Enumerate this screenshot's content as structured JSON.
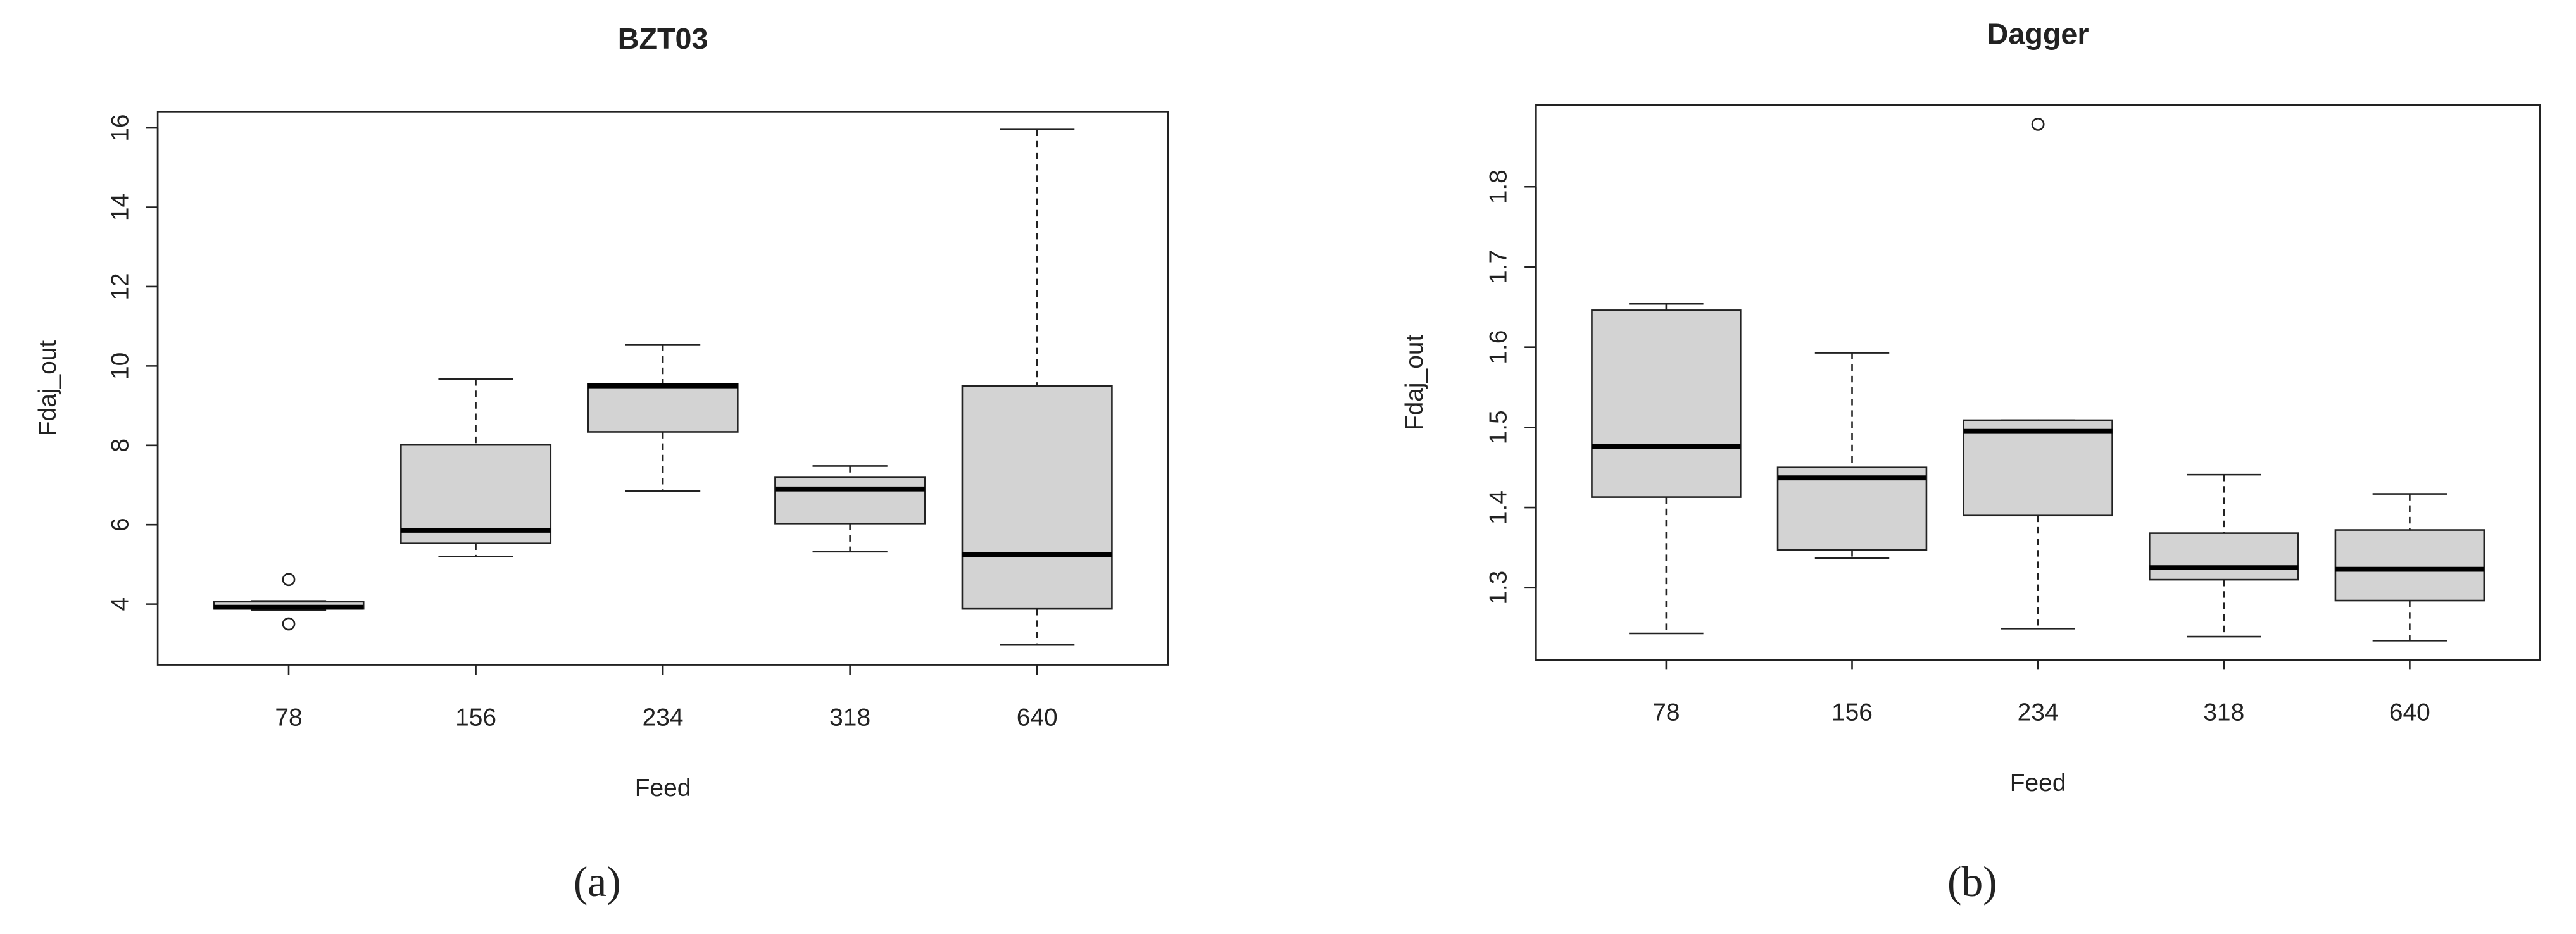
{
  "chart_data": [
    {
      "type": "box",
      "title": "BZT03",
      "xlabel": "Feed",
      "ylabel": "Fdaj_out",
      "caption": "(a)",
      "categories": [
        "78",
        "156",
        "234",
        "318",
        "640"
      ],
      "min": [
        3.85,
        5.2,
        6.85,
        5.32,
        2.97
      ],
      "q1": [
        3.88,
        5.53,
        8.34,
        6.03,
        3.88
      ],
      "median": [
        3.92,
        5.86,
        9.5,
        6.9,
        5.24
      ],
      "q3": [
        4.06,
        8.01,
        9.54,
        7.19,
        9.5
      ],
      "max": [
        4.08,
        9.67,
        10.54,
        7.48,
        15.96
      ],
      "outliers": [
        [
          4.62,
          3.5
        ],
        [],
        [],
        [],
        []
      ],
      "color": "#d3d3d3",
      "ylim": [
        2.47,
        16.41
      ],
      "yticks": [
        4,
        6,
        8,
        10,
        12,
        14,
        16
      ]
    },
    {
      "type": "box",
      "title": "Dagger",
      "xlabel": "Feed",
      "ylabel": "Fdaj_out",
      "caption": "(b)",
      "categories": [
        "78",
        "156",
        "234",
        "318",
        "640"
      ],
      "min": [
        1.243,
        1.337,
        1.249,
        1.239,
        1.234
      ],
      "q1": [
        1.413,
        1.347,
        1.39,
        1.31,
        1.284
      ],
      "median": [
        1.476,
        1.437,
        1.495,
        1.325,
        1.323
      ],
      "q3": [
        1.646,
        1.45,
        1.509,
        1.368,
        1.372
      ],
      "max": [
        1.654,
        1.593,
        1.509,
        1.441,
        1.417
      ],
      "outliers": [
        [],
        [],
        [
          1.878
        ],
        [],
        []
      ],
      "color": "#d3d3d3",
      "ylim": [
        1.21,
        1.902
      ],
      "yticks": [
        1.3,
        1.4,
        1.5,
        1.6,
        1.7,
        1.8
      ]
    }
  ]
}
